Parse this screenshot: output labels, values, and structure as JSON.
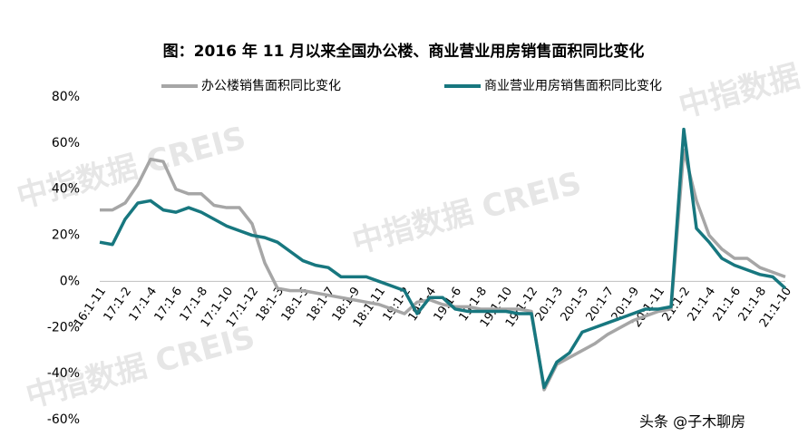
{
  "chart_data": {
    "type": "line",
    "title": "图：2016 年 11 月以来全国办公楼、商业营业用房销售面积同比变化",
    "watermark": "中指数据 CREIS",
    "footer": "头条 @子木聊房",
    "categories": [
      "16:1-11",
      null,
      "17:1-2",
      null,
      "17:1-4",
      null,
      "17:1-6",
      null,
      "17:1-8",
      null,
      "17:1-10",
      null,
      "17:1-12",
      null,
      "18:1-3",
      null,
      "18:1-5",
      null,
      "18:1-7",
      null,
      "18:1-9",
      null,
      "18:1-11",
      null,
      "19:1-2",
      null,
      "19:1-4",
      null,
      "19:1-6",
      null,
      "19:1-8",
      null,
      "19:1-10",
      null,
      "19:1-12",
      null,
      "20:1-3",
      null,
      "20:1-5",
      null,
      "20:1-7",
      null,
      "20:1-9",
      null,
      "20:1-11",
      null,
      "21:1-2",
      null,
      "21:1-4",
      null,
      "21:1-6",
      null,
      "21:1-8",
      null,
      "21:1-10"
    ],
    "series": [
      {
        "name": "办公楼销售面积同比变化",
        "color": "#a6a6a6",
        "values": [
          31,
          31,
          34,
          42,
          53,
          52,
          40,
          38,
          38,
          33,
          32,
          32,
          25,
          8,
          -3,
          -4,
          -4,
          -5,
          -6,
          -7,
          -8,
          -9,
          -10,
          -12,
          -14,
          -9,
          -8,
          -10,
          -11,
          -11,
          -12,
          -12,
          -12,
          -12,
          -13,
          -47,
          -36,
          -33,
          -30,
          -27,
          -23,
          -20,
          -17,
          -15,
          -13,
          -12,
          57,
          35,
          20,
          14,
          10,
          10,
          6,
          4,
          2
        ]
      },
      {
        "name": "商业营业用房销售面积同比变化",
        "color": "#17777f",
        "values": [
          17,
          16,
          27,
          34,
          35,
          31,
          30,
          32,
          30,
          27,
          24,
          22,
          20,
          19,
          17,
          13,
          9,
          7,
          6,
          2,
          2,
          2,
          0,
          -2,
          -4,
          -14,
          -7,
          -7,
          -12,
          -13,
          -13,
          -13,
          -13,
          -14,
          -14,
          -46,
          -35,
          -31,
          -22,
          -20,
          -18,
          -16,
          -14,
          -12,
          -12,
          -11,
          66,
          23,
          17,
          10,
          7,
          5,
          3,
          2,
          -3
        ]
      }
    ],
    "ylim": [
      -60,
      80
    ],
    "yticks": [
      {
        "value": -60,
        "label": "-60%"
      },
      {
        "value": -40,
        "label": "-40%"
      },
      {
        "value": -20,
        "label": "-20%"
      },
      {
        "value": 0,
        "label": "0%"
      },
      {
        "value": 20,
        "label": "20%"
      },
      {
        "value": 40,
        "label": "40%"
      },
      {
        "value": 60,
        "label": "60%"
      },
      {
        "value": 80,
        "label": "80%"
      }
    ]
  }
}
